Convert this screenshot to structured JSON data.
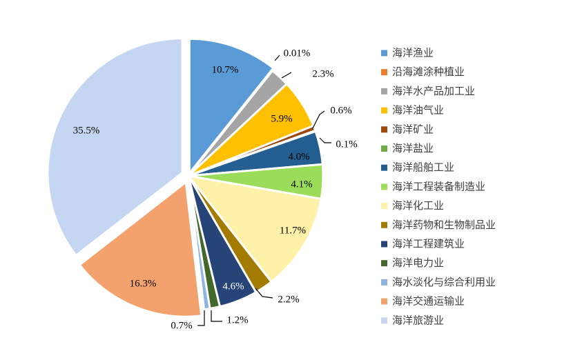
{
  "chart_data": {
    "type": "pie",
    "title": "",
    "legend_position": "right",
    "series": [
      {
        "name": "海洋渔业",
        "value": 10.7,
        "label": "10.7%",
        "color": "#5b9bd5"
      },
      {
        "name": "沿海滩涂种植业",
        "value": 0.01,
        "label": "0.01%",
        "color": "#ed7d31"
      },
      {
        "name": "海洋水产品加工业",
        "value": 2.3,
        "label": "2.3%",
        "color": "#a5a5a5"
      },
      {
        "name": "海洋油气业",
        "value": 5.9,
        "label": "5.9%",
        "color": "#ffc000"
      },
      {
        "name": "海洋矿业",
        "value": 0.6,
        "label": "0.6%",
        "color": "#9e480e"
      },
      {
        "name": "海洋盐业",
        "value": 0.1,
        "label": "0.1%",
        "color": "#70ad47"
      },
      {
        "name": "海洋船舶工业",
        "value": 4.0,
        "label": "4.0%",
        "color": "#255e91"
      },
      {
        "name": "海洋工程装备制造业",
        "value": 4.1,
        "label": "4.1%",
        "color": "#9bdc5a"
      },
      {
        "name": "海洋化工业",
        "value": 11.7,
        "label": "11.7%",
        "color": "#fff2a8"
      },
      {
        "name": "海洋药物和生物制品业",
        "value": 2.2,
        "label": "2.2%",
        "color": "#a37b00"
      },
      {
        "name": "海洋工程建筑业",
        "value": 4.6,
        "label": "4.6%",
        "color": "#264478"
      },
      {
        "name": "海洋电力业",
        "value": 1.2,
        "label": "1.2%",
        "color": "#43682b"
      },
      {
        "name": "海水淡化与综合利用业",
        "value": 0.7,
        "label": "0.7%",
        "color": "#8cb4e2"
      },
      {
        "name": "海洋交通运输业",
        "value": 16.3,
        "label": "16.3%",
        "color": "#f4a26d"
      },
      {
        "name": "海洋旅游业",
        "value": 35.5,
        "label": "35.5%",
        "color": "#c5d6f2"
      }
    ]
  }
}
